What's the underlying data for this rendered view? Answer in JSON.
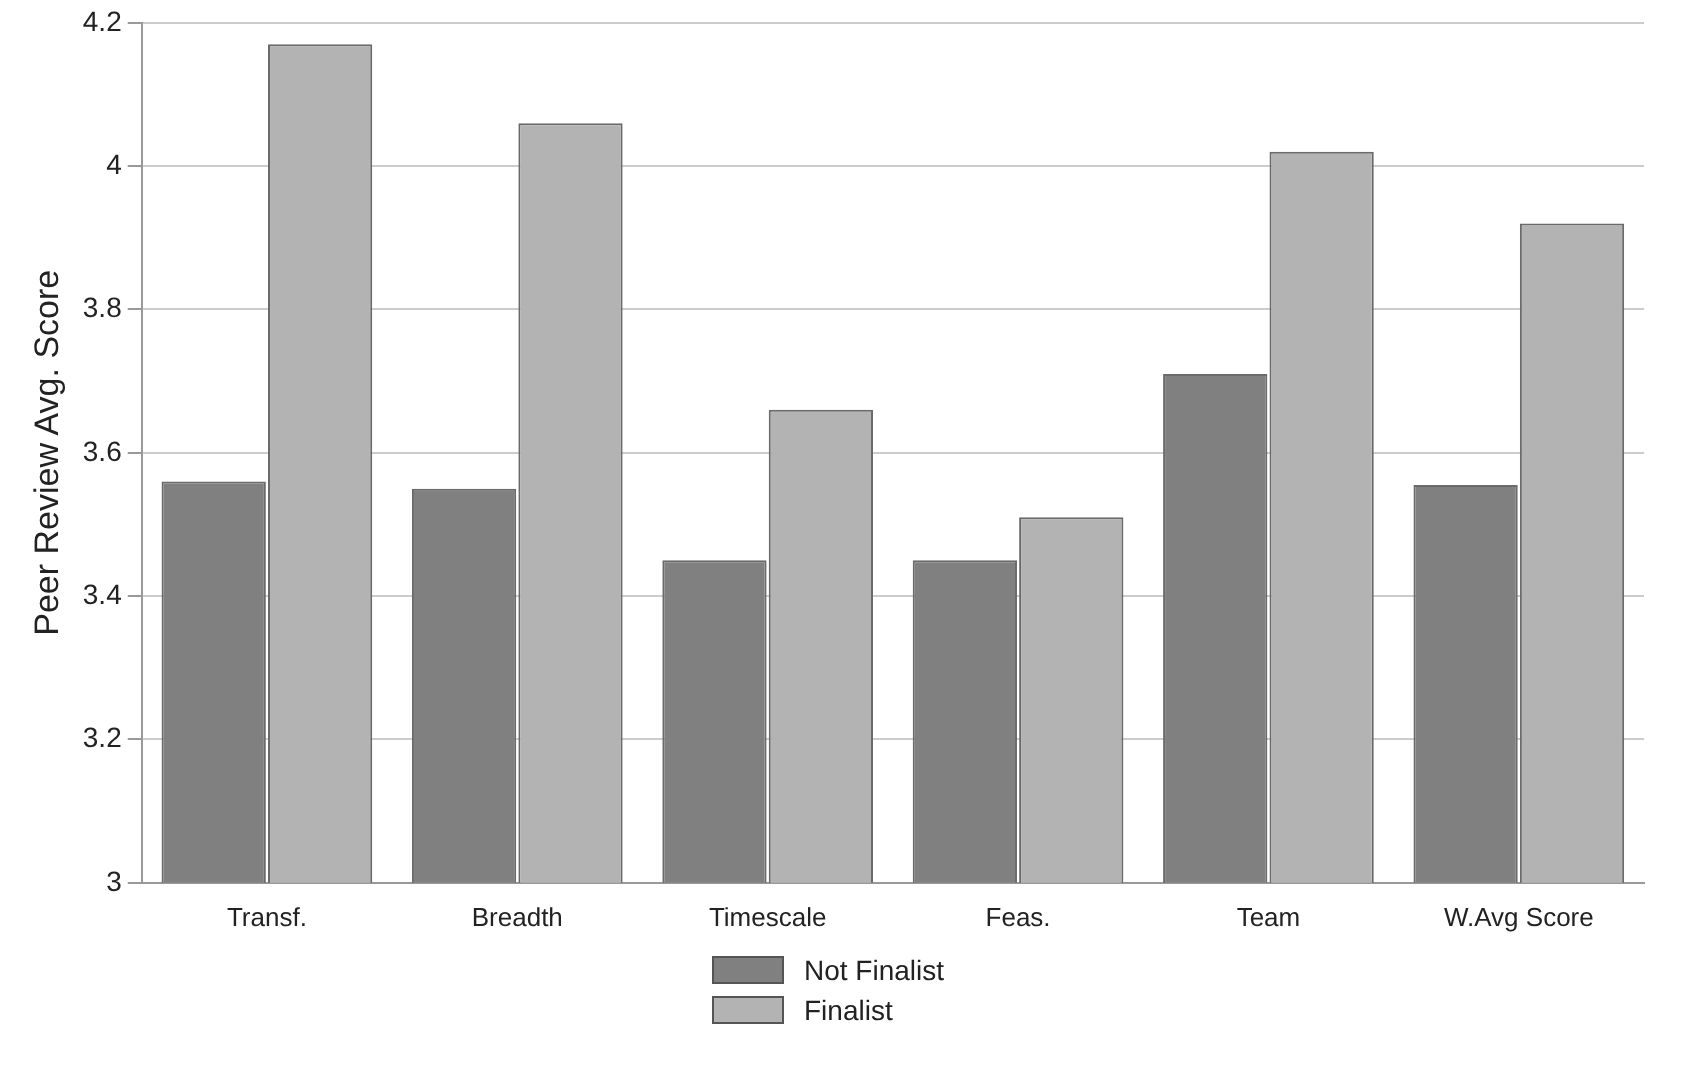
{
  "chart_data": {
    "type": "bar",
    "ylabel": "Peer Review Avg. Score",
    "categories": [
      "Transf.",
      "Breadth",
      "Timescale",
      "Feas.",
      "Team",
      "W.Avg Score"
    ],
    "series": [
      {
        "name": "Not Finalist",
        "color": "#808080",
        "values": [
          3.56,
          3.55,
          3.45,
          3.45,
          3.71,
          3.555
        ]
      },
      {
        "name": "Finalist",
        "color": "#b3b3b3",
        "values": [
          4.17,
          4.06,
          3.66,
          3.51,
          4.02,
          3.92
        ]
      }
    ],
    "ylim": [
      3,
      4.2
    ],
    "yticks": [
      3,
      3.2,
      3.4,
      3.6,
      3.8,
      4,
      4.2
    ],
    "grid": "y",
    "legend": "bottom"
  }
}
